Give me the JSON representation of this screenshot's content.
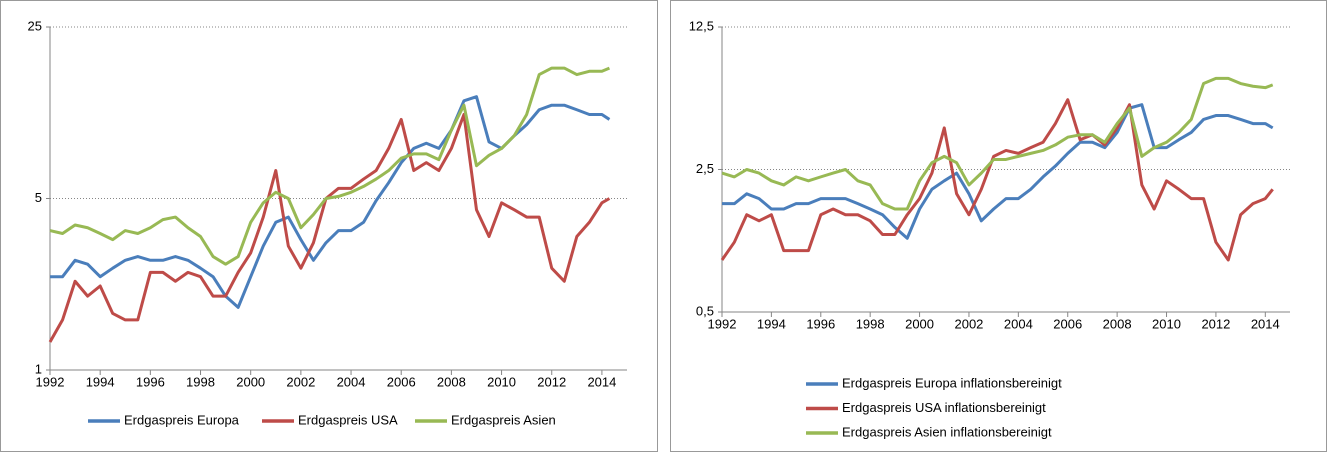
{
  "chart_data": [
    {
      "type": "line",
      "log_scale": true,
      "grid": true,
      "legend": "bottom",
      "legend_direction": "horizontal",
      "x": [
        1992,
        1992.5,
        1993,
        1993.5,
        1994,
        1994.5,
        1995,
        1995.5,
        1996,
        1996.5,
        1997,
        1997.5,
        1998,
        1998.5,
        1999,
        1999.5,
        2000,
        2000.5,
        2001,
        2001.5,
        2002,
        2002.5,
        2003,
        2003.5,
        2004,
        2004.5,
        2005,
        2005.5,
        2006,
        2006.5,
        2007,
        2007.5,
        2008,
        2008.5,
        2009,
        2009.5,
        2010,
        2010.5,
        2011,
        2011.5,
        2012,
        2012.5,
        2013,
        2013.5,
        2014,
        2014.3
      ],
      "xlim": [
        1992,
        2015
      ],
      "xticks": [
        1992,
        1994,
        1996,
        1998,
        2000,
        2002,
        2004,
        2006,
        2008,
        2010,
        2012,
        2014
      ],
      "ylim": [
        1,
        25
      ],
      "yticks": [
        1,
        5,
        25
      ],
      "series": [
        {
          "name": "Erdgaspreis Europa",
          "color": "#4a7ebb",
          "values": [
            2.4,
            2.4,
            2.8,
            2.7,
            2.4,
            2.6,
            2.8,
            2.9,
            2.8,
            2.8,
            2.9,
            2.8,
            2.6,
            2.4,
            2.0,
            1.8,
            2.4,
            3.2,
            4.0,
            4.2,
            3.4,
            2.8,
            3.3,
            3.7,
            3.7,
            4.0,
            4.9,
            5.8,
            7.0,
            8.0,
            8.4,
            8.0,
            9.5,
            12.5,
            13,
            8.5,
            8.0,
            9.0,
            10.0,
            11.5,
            12.0,
            12.0,
            11.5,
            11.0,
            11.0,
            10.5
          ]
        },
        {
          "name": "Erdgaspreis USA",
          "color": "#be4b48",
          "values": [
            1.3,
            1.6,
            2.3,
            2.0,
            2.2,
            1.7,
            1.6,
            1.6,
            2.5,
            2.5,
            2.3,
            2.5,
            2.4,
            2.0,
            2.0,
            2.5,
            3.0,
            4.2,
            6.5,
            3.2,
            2.6,
            3.3,
            5.0,
            5.5,
            5.5,
            6.0,
            6.5,
            8.0,
            10.5,
            6.5,
            7.0,
            6.5,
            8.0,
            11.0,
            4.5,
            3.5,
            4.8,
            4.5,
            4.2,
            4.2,
            2.6,
            2.3,
            3.5,
            4.0,
            4.8,
            5.0
          ]
        },
        {
          "name": "Erdgaspreis Asien",
          "color": "#98b954",
          "values": [
            3.7,
            3.6,
            3.9,
            3.8,
            3.6,
            3.4,
            3.7,
            3.6,
            3.8,
            4.1,
            4.2,
            3.8,
            3.5,
            2.9,
            2.7,
            2.9,
            4.0,
            4.8,
            5.3,
            5.0,
            3.8,
            4.3,
            5.0,
            5.1,
            5.3,
            5.6,
            6.0,
            6.5,
            7.3,
            7.6,
            7.6,
            7.2,
            9.5,
            12.0,
            6.8,
            7.5,
            8.0,
            9.0,
            11.0,
            16.0,
            17.0,
            17.0,
            16.0,
            16.5,
            16.5,
            17.0
          ]
        }
      ]
    },
    {
      "type": "line",
      "log_scale": true,
      "grid": true,
      "legend": "bottom",
      "legend_direction": "vertical",
      "x": [
        1992,
        1992.5,
        1993,
        1993.5,
        1994,
        1994.5,
        1995,
        1995.5,
        1996,
        1996.5,
        1997,
        1997.5,
        1998,
        1998.5,
        1999,
        1999.5,
        2000,
        2000.5,
        2001,
        2001.5,
        2002,
        2002.5,
        2003,
        2003.5,
        2004,
        2004.5,
        2005,
        2005.5,
        2006,
        2006.5,
        2007,
        2007.5,
        2008,
        2008.5,
        2009,
        2009.5,
        2010,
        2010.5,
        2011,
        2011.5,
        2012,
        2012.5,
        2013,
        2013.5,
        2014,
        2014.3
      ],
      "xlim": [
        1992,
        2015
      ],
      "xticks": [
        1992,
        1994,
        1996,
        1998,
        2000,
        2002,
        2004,
        2006,
        2008,
        2010,
        2012,
        2014
      ],
      "ylim": [
        0.5,
        12.5
      ],
      "yticks": [
        {
          "value": 0.5,
          "label": "0,5"
        },
        {
          "value": 2.5,
          "label": "2,5"
        },
        {
          "value": 12.5,
          "label": "12,5"
        }
      ],
      "series": [
        {
          "name": "Erdgaspreis Europa inflationsbereinigt",
          "color": "#4a7ebb",
          "values": [
            1.7,
            1.7,
            1.9,
            1.8,
            1.6,
            1.6,
            1.7,
            1.7,
            1.8,
            1.8,
            1.8,
            1.7,
            1.6,
            1.5,
            1.3,
            1.15,
            1.6,
            2.0,
            2.2,
            2.4,
            1.9,
            1.4,
            1.6,
            1.8,
            1.8,
            2.0,
            2.3,
            2.6,
            3.0,
            3.4,
            3.4,
            3.2,
            3.8,
            5.0,
            5.2,
            3.2,
            3.2,
            3.5,
            3.8,
            4.4,
            4.6,
            4.6,
            4.4,
            4.2,
            4.2,
            4.0
          ]
        },
        {
          "name": "Erdgaspreis USA inflationsbereinigt",
          "color": "#be4b48",
          "values": [
            0.9,
            1.1,
            1.5,
            1.4,
            1.5,
            1.0,
            1.0,
            1.0,
            1.5,
            1.6,
            1.5,
            1.5,
            1.4,
            1.2,
            1.2,
            1.5,
            1.8,
            2.4,
            4.0,
            1.9,
            1.5,
            2.0,
            2.9,
            3.1,
            3.0,
            3.2,
            3.4,
            4.2,
            5.5,
            3.5,
            3.7,
            3.3,
            4.0,
            5.2,
            2.1,
            1.6,
            2.2,
            2.0,
            1.8,
            1.8,
            1.1,
            0.9,
            1.5,
            1.7,
            1.8,
            2.0
          ]
        },
        {
          "name": "Erdgaspreis Asien inflationsbereinigt",
          "color": "#98b954",
          "values": [
            2.4,
            2.3,
            2.5,
            2.4,
            2.2,
            2.1,
            2.3,
            2.2,
            2.3,
            2.4,
            2.5,
            2.2,
            2.1,
            1.7,
            1.6,
            1.6,
            2.2,
            2.7,
            2.9,
            2.7,
            2.1,
            2.4,
            2.8,
            2.8,
            2.9,
            3.0,
            3.1,
            3.3,
            3.6,
            3.7,
            3.7,
            3.4,
            4.2,
            5.0,
            2.9,
            3.2,
            3.4,
            3.8,
            4.4,
            6.6,
            7.0,
            7.0,
            6.6,
            6.4,
            6.3,
            6.5
          ]
        }
      ]
    }
  ]
}
